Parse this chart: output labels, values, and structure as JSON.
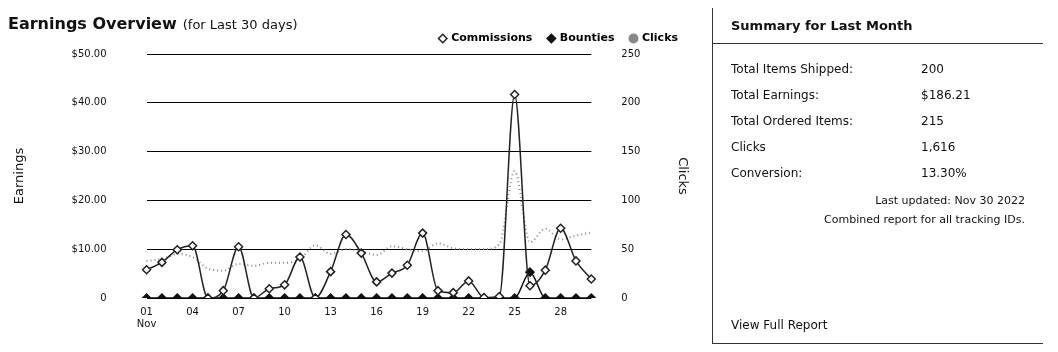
{
  "chart_data": [
    {
      "type": "line",
      "title": "Earnings Overview",
      "subtitle": "(for Last 30 days)",
      "ylabel": "Earnings",
      "y2label": "Clicks",
      "legend": "top right",
      "grid": "y",
      "categories": [
        "01 Nov",
        null,
        null,
        "04",
        null,
        null,
        "07",
        null,
        null,
        "10",
        null,
        null,
        "13",
        null,
        null,
        "16",
        null,
        null,
        "19",
        null,
        null,
        "22",
        null,
        null,
        "25",
        null,
        null,
        "28",
        null,
        null
      ],
      "ylim": [
        0,
        50
      ],
      "yticks": [
        {
          "value": 0,
          "label": "0"
        },
        {
          "value": 10,
          "label": "$10.00"
        },
        {
          "value": 20,
          "label": "$20.00"
        },
        {
          "value": 30,
          "label": "$30.00"
        },
        {
          "value": 40,
          "label": "$40.00"
        },
        {
          "value": 50,
          "label": "$50.00"
        }
      ],
      "y2lim": [
        0,
        250
      ],
      "y2ticks": [
        0,
        50,
        100,
        150,
        200,
        250
      ],
      "series": [
        {
          "name": "Commissions",
          "color": "#222222",
          "marker": "diamond",
          "line_style": "solid",
          "values": [
            5.8,
            7.3,
            9.9,
            10.7,
            0,
            1.5,
            10.5,
            0,
            1.9,
            2.7,
            8.4,
            0,
            5.4,
            13,
            9.2,
            3.3,
            5.1,
            6.7,
            13.3,
            1.5,
            1.1,
            3.5,
            0.1,
            0.3,
            41.7,
            2.5,
            5.7,
            14.3,
            7.6,
            3.9
          ]
        },
        {
          "name": "Bounties",
          "color": "#111111",
          "marker": "diamond",
          "line_style": "solid",
          "values": [
            0,
            0,
            0,
            0,
            0,
            0,
            0,
            0,
            0,
            0,
            0,
            0,
            0,
            0,
            0,
            0,
            0,
            0,
            0,
            0,
            0,
            0,
            0,
            0,
            0,
            5.3,
            0,
            0,
            0,
            0
          ]
        },
        {
          "name": "Clicks",
          "color": "#888888",
          "marker": "none",
          "line_style": "dotted",
          "axis": "y2",
          "values": [
            38,
            40,
            45,
            42,
            30,
            28,
            35,
            33,
            36,
            36,
            40,
            54,
            45,
            50,
            48,
            44,
            53,
            50,
            48,
            56,
            51,
            50,
            50,
            55,
            130,
            57,
            71,
            60,
            64,
            67
          ]
        }
      ]
    },
    {
      "type": "other",
      "title": "Summary for Last Month",
      "annotations": [
        "Total Items Shipped:",
        "200",
        "Total Earnings:",
        "$186.21",
        "Total Ordered Items:",
        "215",
        "Clicks",
        "1,616",
        "Conversion:",
        "13.30%",
        "Last updated: Nov 30 2022",
        "Combined report for all tracking IDs.",
        "View Full Report"
      ]
    }
  ]
}
